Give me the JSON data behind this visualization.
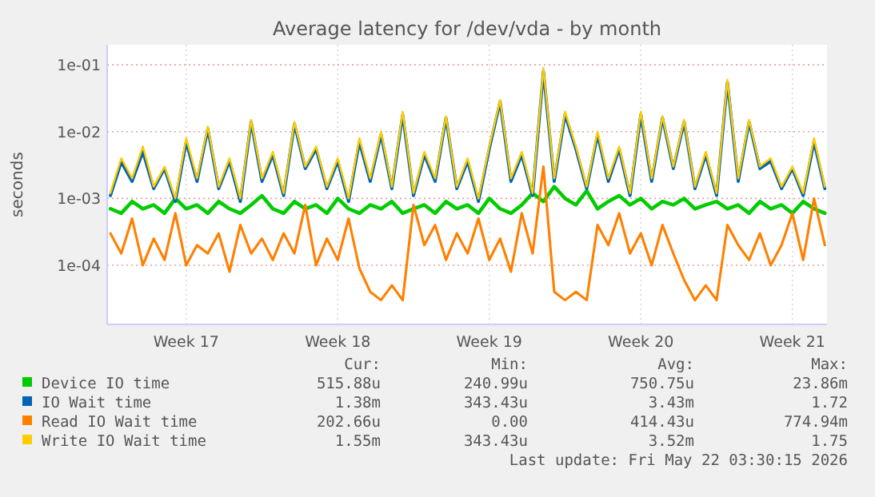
{
  "chart_data": {
    "type": "line",
    "title": "Average latency for /dev/vda - by month",
    "ylabel": "seconds",
    "log": true,
    "grid": true,
    "legend": "bottom",
    "line_style": "solid",
    "categories": [
      null,
      null,
      null,
      null,
      null,
      null,
      null,
      "Week 17",
      null,
      null,
      null,
      null,
      null,
      null,
      null,
      null,
      null,
      null,
      null,
      null,
      null,
      "Week 18",
      null,
      null,
      null,
      null,
      null,
      null,
      null,
      null,
      null,
      null,
      null,
      null,
      null,
      "Week 19",
      null,
      null,
      null,
      null,
      null,
      null,
      null,
      null,
      null,
      null,
      null,
      null,
      null,
      "Week 20",
      null,
      null,
      null,
      null,
      null,
      null,
      null,
      null,
      null,
      null,
      null,
      null,
      null,
      "Week 21",
      null,
      null,
      null
    ],
    "ylim": [
      1.3e-05,
      0.2
    ],
    "yticks": [
      {
        "value": 0.0001,
        "label": "1e-04"
      },
      {
        "value": 0.001,
        "label": "1e-03"
      },
      {
        "value": 0.01,
        "label": "1e-02"
      },
      {
        "value": 0.1,
        "label": "1e-01"
      }
    ],
    "series": [
      {
        "name": "Device IO time",
        "color": "#00cc00",
        "values": [
          0.0007,
          0.0006,
          0.0009,
          0.0007,
          0.0008,
          0.0006,
          0.001,
          0.0007,
          0.0008,
          0.0006,
          0.0009,
          0.0007,
          0.0006,
          0.0008,
          0.0011,
          0.0007,
          0.0006,
          0.0009,
          0.0007,
          0.0008,
          0.0006,
          0.001,
          0.0007,
          0.0006,
          0.0008,
          0.0007,
          0.0009,
          0.0006,
          0.0007,
          0.0008,
          0.0006,
          0.0009,
          0.0007,
          0.0008,
          0.0006,
          0.001,
          0.0007,
          0.0006,
          0.0008,
          0.0012,
          0.0009,
          0.0015,
          0.001,
          0.0008,
          0.0013,
          0.0007,
          0.0009,
          0.0011,
          0.0008,
          0.001,
          0.0007,
          0.0009,
          0.0008,
          0.001,
          0.0007,
          0.0008,
          0.0009,
          0.0007,
          0.0008,
          0.0006,
          0.0009,
          0.0007,
          0.0008,
          0.0006,
          0.0009,
          0.0007,
          0.0006
        ]
      },
      {
        "name": "IO Wait time",
        "color": "#0066b3",
        "values": [
          0.0011,
          0.0035,
          0.0018,
          0.005,
          0.0014,
          0.0028,
          0.0009,
          0.007,
          0.0018,
          0.011,
          0.0014,
          0.0036,
          0.0009,
          0.014,
          0.0018,
          0.0045,
          0.0011,
          0.013,
          0.0028,
          0.0055,
          0.0014,
          0.0036,
          0.0009,
          0.007,
          0.0018,
          0.009,
          0.0014,
          0.018,
          0.0011,
          0.0045,
          0.0018,
          0.016,
          0.0014,
          0.0036,
          0.0009,
          0.0055,
          0.028,
          0.0018,
          0.0045,
          0.0011,
          0.08,
          0.0018,
          0.018,
          0.0055,
          0.0014,
          0.009,
          0.0018,
          0.0055,
          0.0011,
          0.018,
          0.0018,
          0.016,
          0.0028,
          0.014,
          0.0014,
          0.0045,
          0.0011,
          0.055,
          0.0018,
          0.014,
          0.0028,
          0.0036,
          0.0014,
          0.0028,
          0.0011,
          0.007,
          0.0014
        ]
      },
      {
        "name": "Read IO Wait time",
        "color": "#ff8000",
        "values": [
          0.0003,
          0.00015,
          0.0005,
          0.0001,
          0.00025,
          0.00012,
          0.0006,
          0.0001,
          0.0002,
          0.00015,
          0.0003,
          8e-05,
          0.0004,
          0.00015,
          0.00025,
          0.00012,
          0.0003,
          0.00015,
          0.0008,
          0.0001,
          0.00025,
          0.00012,
          0.0005,
          9e-05,
          4e-05,
          3e-05,
          5e-05,
          3e-05,
          0.0008,
          0.0002,
          0.0004,
          0.00012,
          0.0003,
          0.00015,
          0.0005,
          0.00012,
          0.00025,
          8e-05,
          0.0006,
          0.00015,
          0.003,
          4e-05,
          3e-05,
          4e-05,
          3e-05,
          0.0004,
          0.0002,
          0.0006,
          0.00015,
          0.0003,
          0.0001,
          0.0004,
          0.00015,
          6e-05,
          3e-05,
          5e-05,
          3e-05,
          0.0004,
          0.0002,
          0.00012,
          0.0003,
          0.0001,
          0.0002,
          0.0006,
          0.00012,
          0.001,
          0.0002
        ]
      },
      {
        "name": "Write IO Wait time",
        "color": "#ffcc00",
        "values": [
          0.0012,
          0.004,
          0.002,
          0.006,
          0.0015,
          0.003,
          0.001,
          0.008,
          0.002,
          0.012,
          0.0015,
          0.004,
          0.001,
          0.015,
          0.002,
          0.005,
          0.0012,
          0.014,
          0.003,
          0.006,
          0.0015,
          0.004,
          0.001,
          0.008,
          0.002,
          0.01,
          0.0015,
          0.02,
          0.0012,
          0.005,
          0.002,
          0.017,
          0.0015,
          0.004,
          0.001,
          0.006,
          0.03,
          0.002,
          0.005,
          0.0012,
          0.09,
          0.002,
          0.02,
          0.006,
          0.0015,
          0.01,
          0.002,
          0.006,
          0.0012,
          0.02,
          0.002,
          0.017,
          0.003,
          0.015,
          0.0015,
          0.005,
          0.0012,
          0.06,
          0.002,
          0.015,
          0.003,
          0.004,
          0.0015,
          0.003,
          0.0012,
          0.008,
          0.0015
        ]
      }
    ],
    "annotations": [
      "Cur:",
      "Min:",
      "Avg:",
      "Max:",
      "515.88u",
      "240.99u",
      "750.75u",
      "23.86m",
      "1.38m",
      "343.43u",
      "3.43m",
      "1.72",
      "202.66u",
      "0.00",
      "414.43u",
      "774.94m",
      "1.55m",
      "343.43u",
      "3.52m",
      "1.75",
      "Last update: Fri May 22 03:30:15 2026"
    ]
  }
}
